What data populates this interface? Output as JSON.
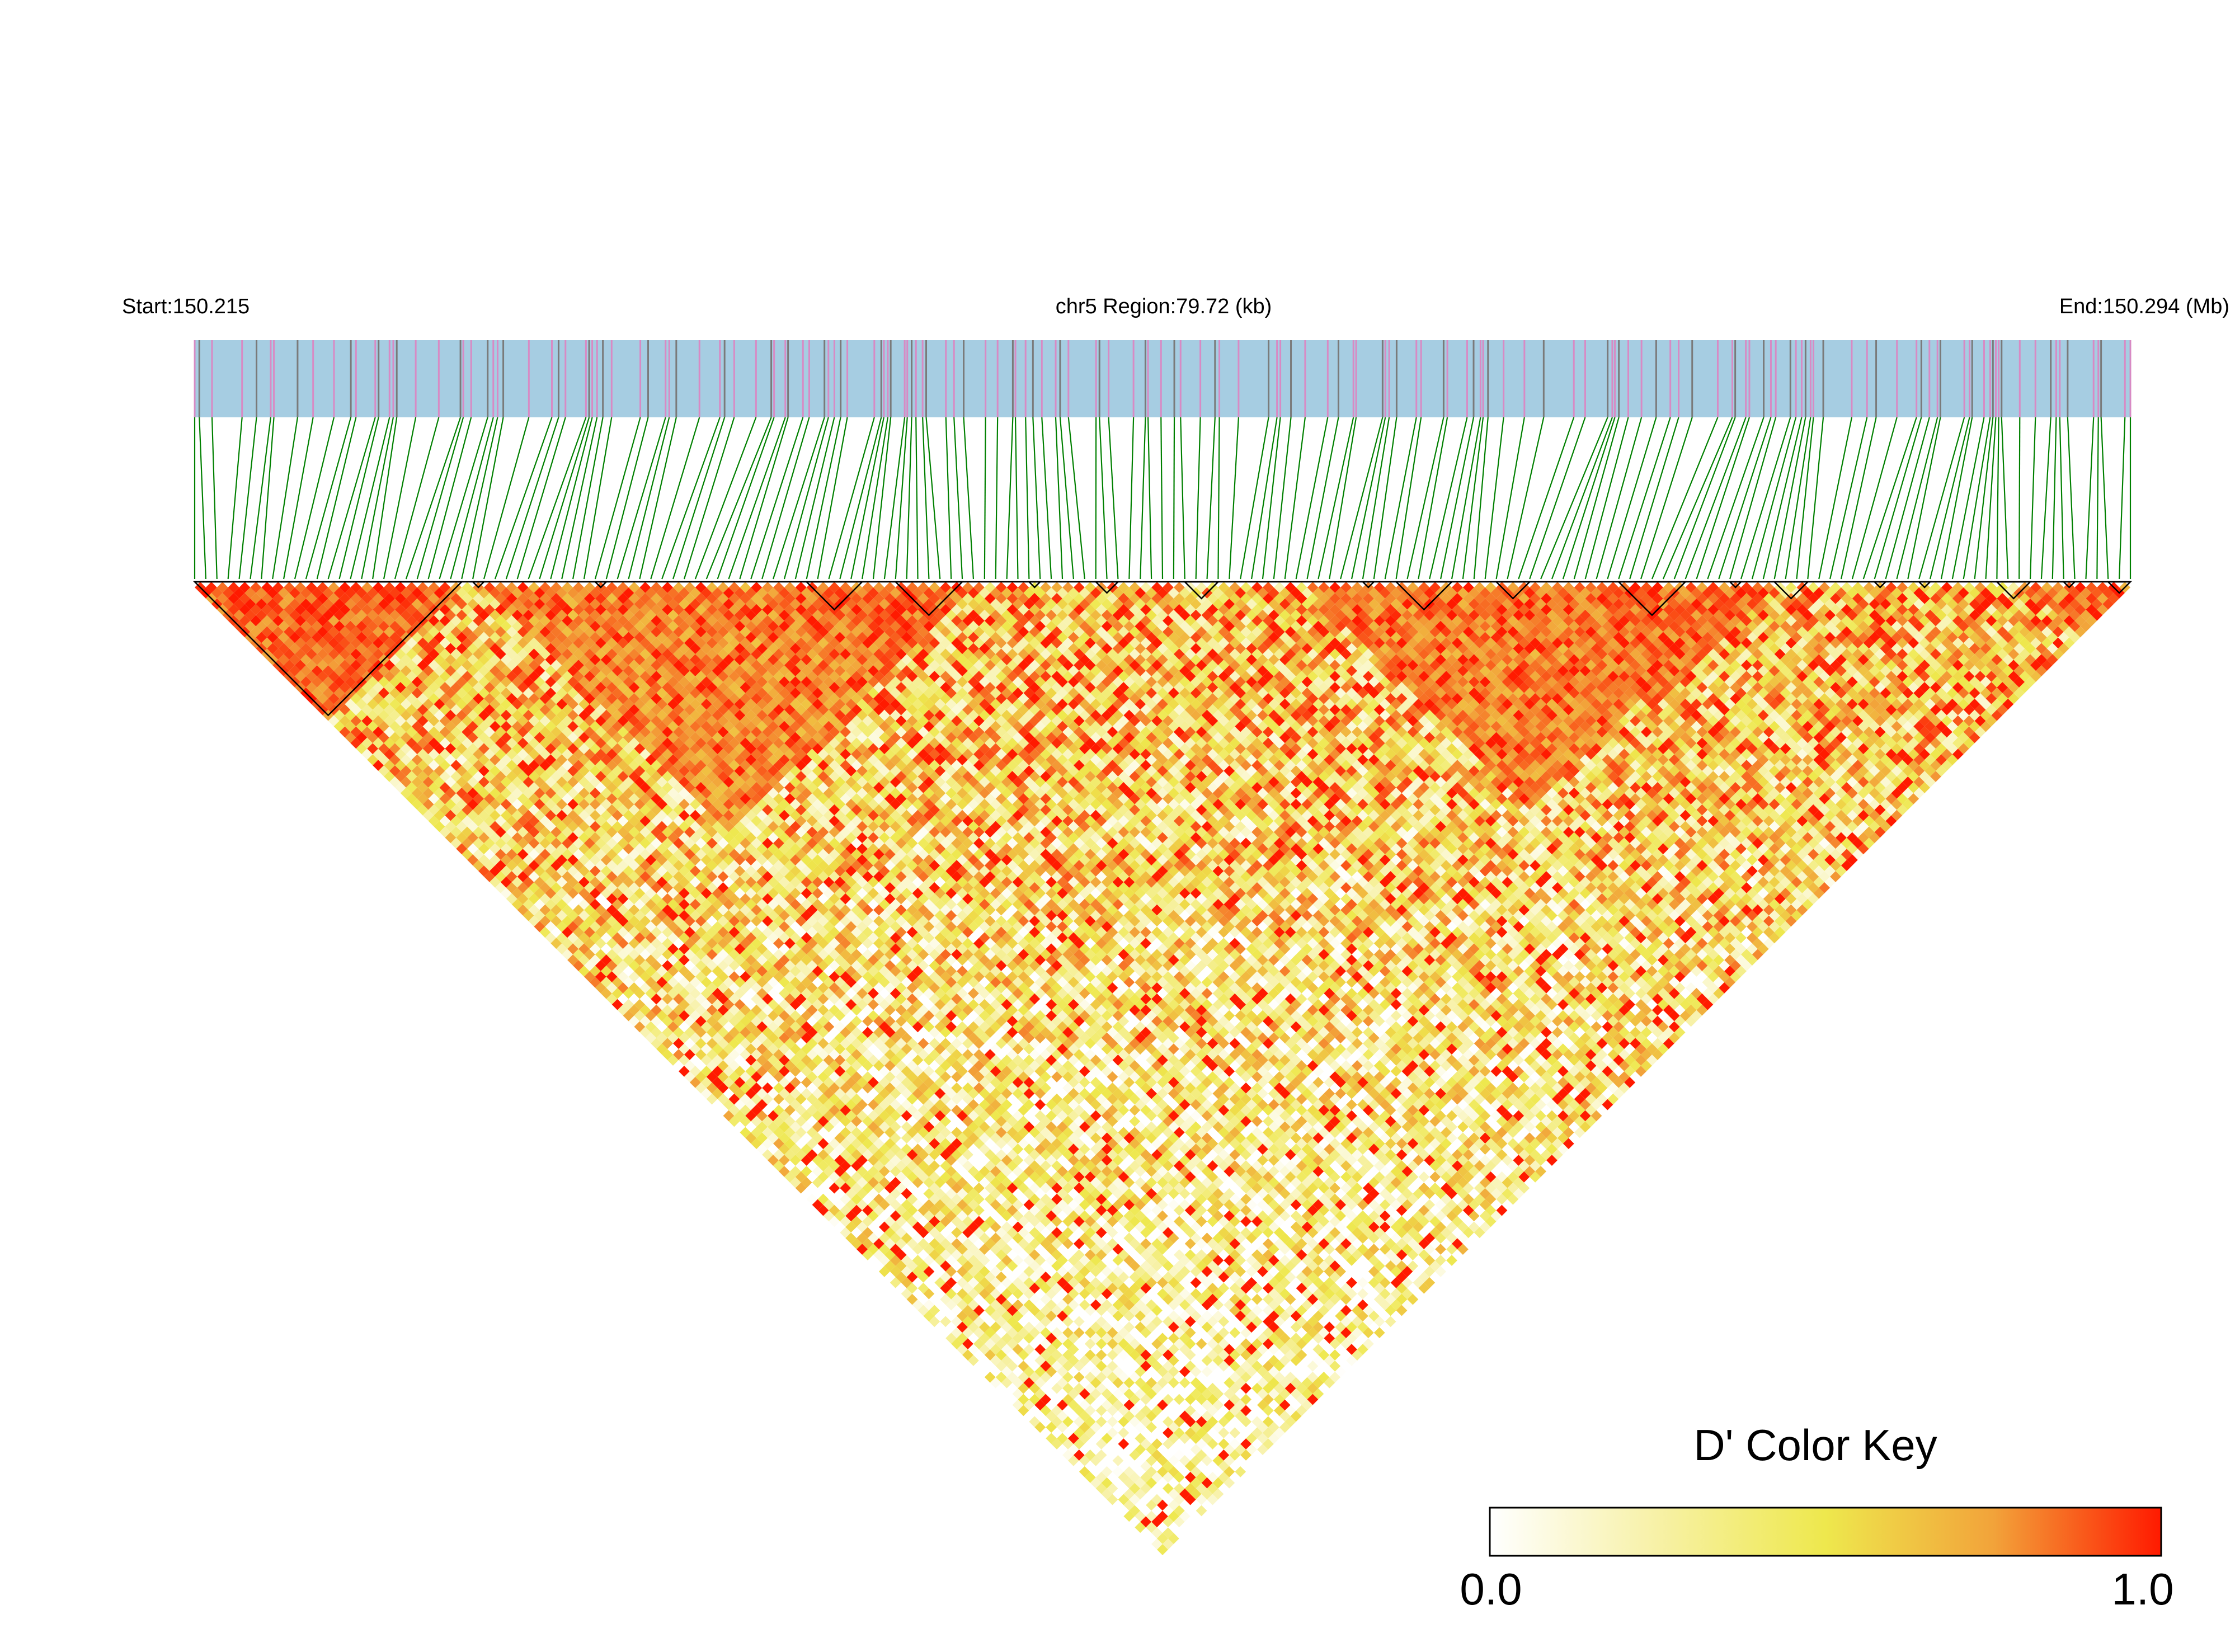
{
  "header": {
    "start_label": "Start:150.215",
    "region_label": "chr5 Region:79.72 (kb)",
    "end_label": "End:150.294 (Mb)"
  },
  "color_key": {
    "title": "D' Color Key",
    "min_label": "0.0",
    "max_label": "1.0",
    "stops": [
      "#ffffff",
      "#f7f1a6",
      "#eee84d",
      "#f2a33a",
      "#ff1a00"
    ]
  },
  "colors": {
    "track_fill": "#a6cde2",
    "snp_tick_magenta": "#d88ac4",
    "snp_tick_gray": "#7a7a7a",
    "connector_green": "#008000",
    "block_outline": "#000000"
  },
  "chart_data": {
    "type": "heatmap",
    "title": "",
    "description_measure": "D'",
    "region": {
      "chromosome": "chr5",
      "start_mb": 150.215,
      "end_mb": 150.294,
      "length_kb": 79.72
    },
    "snp_count": 175,
    "value_range": [
      0,
      1
    ],
    "high_ld_bands": [
      {
        "from_snp": 0,
        "to_snp": 24,
        "level": 0.97
      },
      {
        "from_snp": 26,
        "to_snp": 70,
        "level": 0.88
      },
      {
        "from_snp": 52,
        "to_snp": 70,
        "level": 0.95
      },
      {
        "from_snp": 100,
        "to_snp": 140,
        "level": 0.9
      },
      {
        "from_snp": 120,
        "to_snp": 142,
        "level": 0.95
      },
      {
        "from_snp": 165,
        "to_snp": 174,
        "level": 0.92
      }
    ],
    "haplotype_blocks": [
      {
        "from_snp": 0,
        "to_snp": 24
      },
      {
        "from_snp": 25,
        "to_snp": 26
      },
      {
        "from_snp": 36,
        "to_snp": 37
      },
      {
        "from_snp": 55,
        "to_snp": 60
      },
      {
        "from_snp": 63,
        "to_snp": 69
      },
      {
        "from_snp": 75,
        "to_snp": 76
      },
      {
        "from_snp": 81,
        "to_snp": 83
      },
      {
        "from_snp": 89,
        "to_snp": 92
      },
      {
        "from_snp": 105,
        "to_snp": 106
      },
      {
        "from_snp": 108,
        "to_snp": 113
      },
      {
        "from_snp": 117,
        "to_snp": 120
      },
      {
        "from_snp": 128,
        "to_snp": 134
      },
      {
        "from_snp": 138,
        "to_snp": 139
      },
      {
        "from_snp": 142,
        "to_snp": 145
      },
      {
        "from_snp": 151,
        "to_snp": 152
      },
      {
        "from_snp": 155,
        "to_snp": 156
      },
      {
        "from_snp": 162,
        "to_snp": 165
      },
      {
        "from_snp": 168,
        "to_snp": 169
      },
      {
        "from_snp": 172,
        "to_snp": 174
      }
    ]
  }
}
